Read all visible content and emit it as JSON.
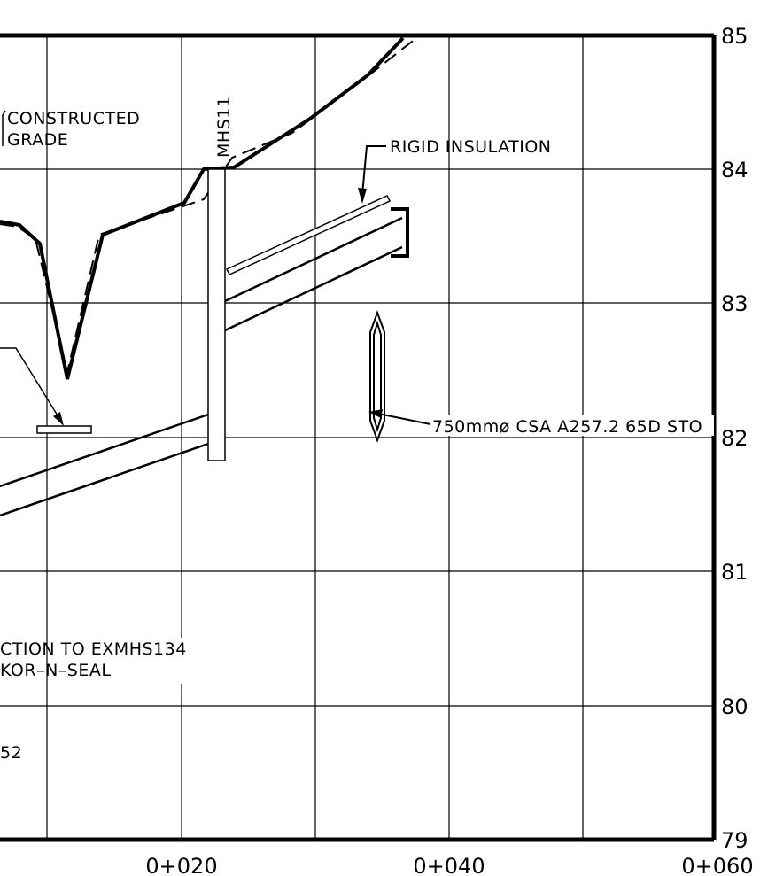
{
  "drawing": {
    "elevation_labels": [
      "85",
      "84",
      "83",
      "82",
      "81",
      "80",
      "79"
    ],
    "station_labels": [
      "0+020",
      "0+040",
      "0+060"
    ],
    "notes": {
      "constructed_line1": "CONSTRUCTED",
      "constructed_line2": "GRADE",
      "manhole": "MHS11",
      "rigid_insulation": "RIGID  INSULATION",
      "pipe_spec": "750mmø  CSA  A257.2  65D  STO",
      "connection_line1": "CTION  TO  EXMHS134",
      "connection_line2": "KOR–N–SEAL",
      "partial_52": "52"
    }
  }
}
